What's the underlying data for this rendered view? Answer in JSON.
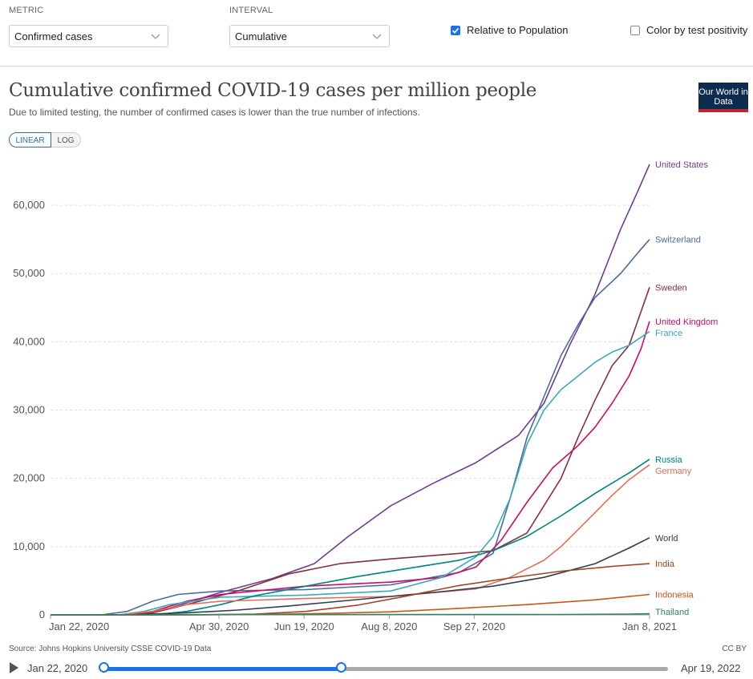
{
  "controls": {
    "metric_label": "METRIC",
    "metric_value": "Confirmed cases",
    "interval_label": "INTERVAL",
    "interval_value": "Cumulative",
    "relative_label": "Relative to Population",
    "relative_checked": true,
    "positivity_label": "Color by test positivity",
    "positivity_checked": false
  },
  "header": {
    "title": "Cumulative confirmed COVID-19 cases per million people",
    "subtitle": "Due to limited testing, the number of confirmed cases is lower than the true number of infections.",
    "logo": "Our World in Data",
    "linear_label": "LINEAR",
    "log_label": "LOG"
  },
  "footer": {
    "source": "Source: Johns Hopkins University CSSE COVID-19 Data",
    "license": "CC BY"
  },
  "timeline": {
    "start": "Jan 22, 2020",
    "end": "Apr 19, 2022",
    "selected_fraction": 0.42
  },
  "chart_data": {
    "type": "line",
    "title": "Cumulative confirmed COVID-19 cases per million people",
    "xlabel": "",
    "ylabel": "",
    "ylim": [
      0,
      66000
    ],
    "xlim_days": [
      0,
      352
    ],
    "x_ticks": [
      {
        "day": 0,
        "label": "Jan 22, 2020"
      },
      {
        "day": 99,
        "label": "Apr 30, 2020"
      },
      {
        "day": 149,
        "label": "Jun 19, 2020"
      },
      {
        "day": 199,
        "label": "Aug 8, 2020"
      },
      {
        "day": 249,
        "label": "Sep 27, 2020"
      },
      {
        "day": 352,
        "label": "Jan 8, 2021"
      }
    ],
    "y_ticks": [
      {
        "value": 0,
        "label": "0"
      },
      {
        "value": 10000,
        "label": "10,000"
      },
      {
        "value": 20000,
        "label": "20,000"
      },
      {
        "value": 30000,
        "label": "30,000"
      },
      {
        "value": 40000,
        "label": "40,000"
      },
      {
        "value": 50000,
        "label": "50,000"
      },
      {
        "value": 60000,
        "label": "60,000"
      }
    ],
    "series": [
      {
        "name": "United States",
        "color": "#6d3e91",
        "x": [
          0,
          40,
          55,
          70,
          100,
          130,
          155,
          175,
          200,
          225,
          250,
          275,
          290,
          305,
          320,
          335,
          345,
          352
        ],
        "y": [
          0,
          0,
          100,
          1000,
          3300,
          5300,
          7500,
          11500,
          16000,
          19300,
          22300,
          26300,
          31000,
          39500,
          47000,
          56500,
          62000,
          66000
        ]
      },
      {
        "name": "Switzerland",
        "color": "#4c6a9c",
        "x": [
          0,
          30,
          45,
          60,
          75,
          100,
          150,
          200,
          240,
          260,
          270,
          280,
          290,
          300,
          310,
          320,
          335,
          345,
          352
        ],
        "y": [
          0,
          0,
          500,
          2000,
          3000,
          3500,
          3700,
          4400,
          6200,
          9000,
          17000,
          26000,
          32000,
          38000,
          42500,
          46500,
          50000,
          53000,
          55000
        ]
      },
      {
        "name": "Sweden",
        "color": "#883039",
        "x": [
          0,
          40,
          60,
          80,
          110,
          140,
          170,
          200,
          230,
          260,
          280,
          300,
          310,
          320,
          330,
          340,
          345,
          352
        ],
        "y": [
          0,
          0,
          300,
          1500,
          3500,
          6000,
          7500,
          8200,
          8800,
          9400,
          12000,
          20000,
          26000,
          31500,
          36500,
          39500,
          43000,
          48000
        ]
      },
      {
        "name": "United Kingdom",
        "color": "#cf0a66",
        "x": [
          0,
          45,
          60,
          80,
          100,
          150,
          200,
          230,
          250,
          265,
          280,
          295,
          310,
          320,
          330,
          340,
          347,
          352
        ],
        "y": [
          0,
          0,
          500,
          2000,
          3000,
          4200,
          4800,
          5500,
          7000,
          11000,
          16500,
          21500,
          24800,
          27500,
          31000,
          35000,
          39000,
          43000
        ]
      },
      {
        "name": "France",
        "color": "#38aaba",
        "x": [
          0,
          40,
          55,
          70,
          100,
          150,
          200,
          230,
          250,
          260,
          270,
          280,
          290,
          300,
          310,
          320,
          330,
          340,
          352
        ],
        "y": [
          0,
          0,
          500,
          1500,
          2600,
          2900,
          3500,
          5500,
          8500,
          11500,
          17000,
          25000,
          30000,
          33000,
          35000,
          37000,
          38500,
          39500,
          41500
        ]
      },
      {
        "name": "Russia",
        "color": "#00847e",
        "x": [
          0,
          60,
          80,
          100,
          120,
          150,
          180,
          210,
          240,
          260,
          280,
          300,
          320,
          340,
          352
        ],
        "y": [
          0,
          0,
          500,
          1500,
          2800,
          4200,
          5600,
          6800,
          8000,
          9400,
          11500,
          14500,
          17800,
          20800,
          22800
        ]
      },
      {
        "name": "Germany",
        "color": "#e56e5a",
        "x": [
          0,
          40,
          60,
          80,
          100,
          150,
          200,
          250,
          270,
          290,
          300,
          310,
          320,
          330,
          340,
          352
        ],
        "y": [
          0,
          0,
          500,
          1500,
          2000,
          2400,
          2700,
          3800,
          5500,
          8000,
          10000,
          12500,
          15000,
          17500,
          19800,
          22000
        ]
      },
      {
        "name": "World",
        "color": "#2f3e54",
        "x": [
          0,
          50,
          80,
          110,
          140,
          170,
          200,
          230,
          260,
          290,
          320,
          340,
          352
        ],
        "y": [
          0,
          40,
          300,
          700,
          1300,
          2000,
          2700,
          3400,
          4200,
          5500,
          7500,
          9800,
          11300
        ]
      },
      {
        "name": "India",
        "color": "#a2441d",
        "x": [
          0,
          80,
          120,
          150,
          180,
          210,
          240,
          270,
          300,
          330,
          352
        ],
        "y": [
          0,
          0,
          100,
          500,
          1400,
          2800,
          4300,
          5400,
          6400,
          7100,
          7500
        ]
      },
      {
        "name": "Indonesia",
        "color": "#c35917",
        "x": [
          0,
          80,
          120,
          160,
          200,
          240,
          280,
          320,
          352
        ],
        "y": [
          0,
          0,
          50,
          200,
          450,
          950,
          1500,
          2200,
          3000
        ]
      },
      {
        "name": "Thailand",
        "color": "#2c8465",
        "x": [
          0,
          60,
          100,
          200,
          300,
          340,
          352
        ],
        "y": [
          0,
          20,
          40,
          50,
          60,
          120,
          160
        ]
      }
    ]
  }
}
